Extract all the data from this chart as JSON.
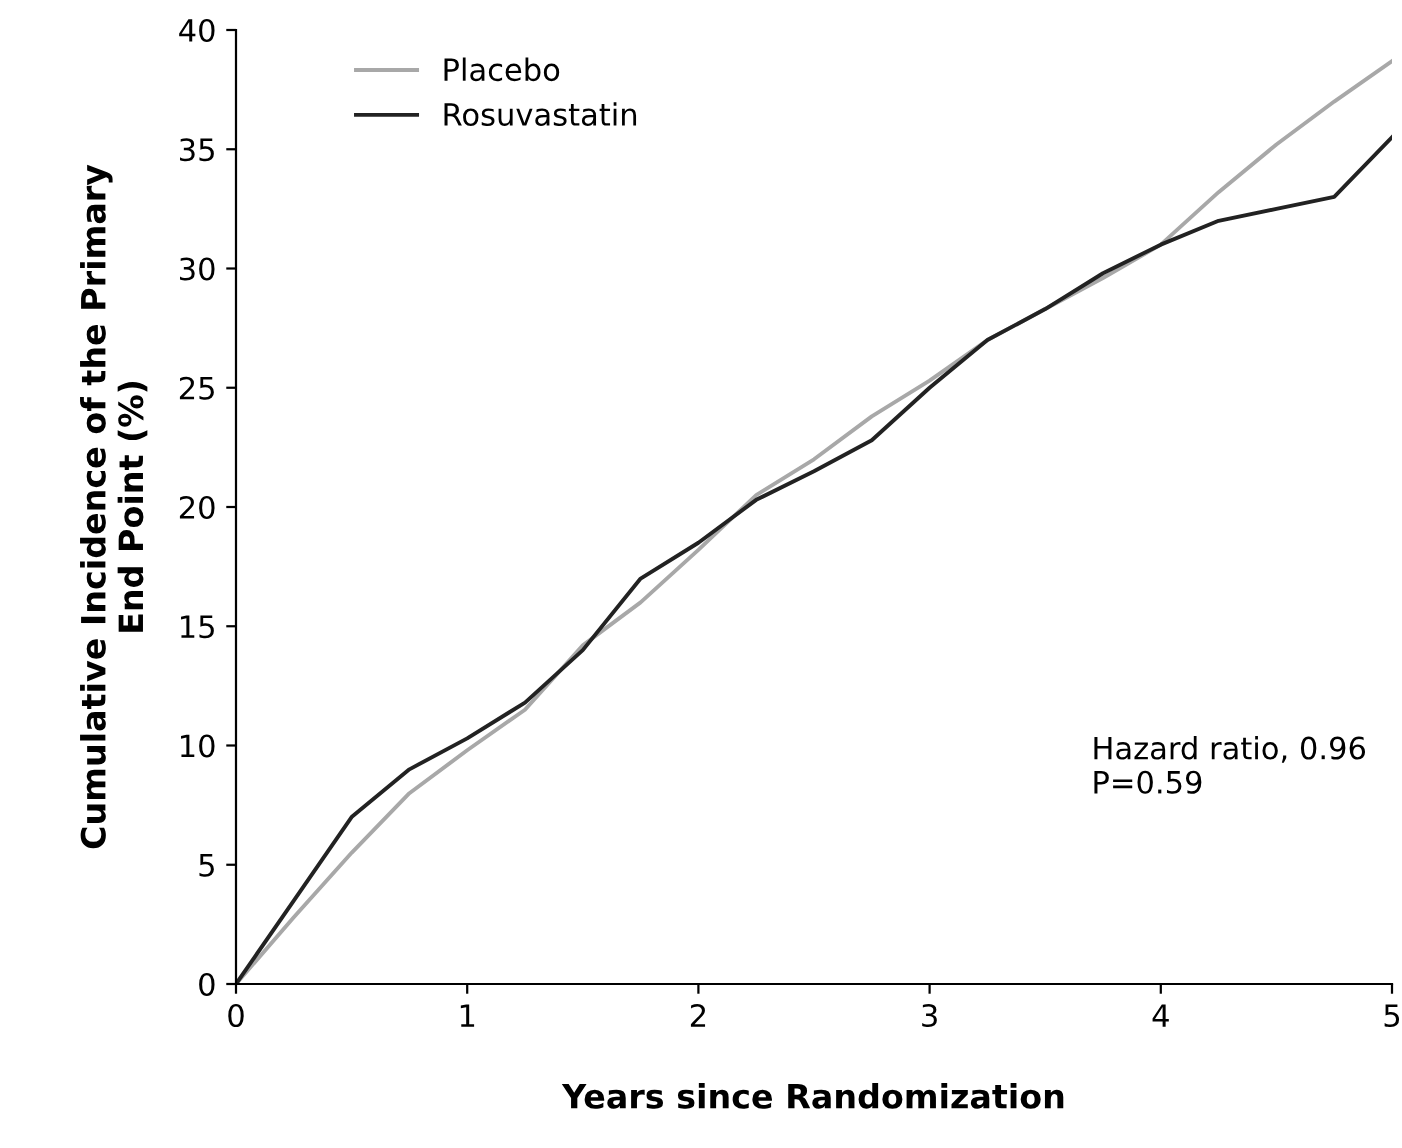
{
  "chart_data": {
    "type": "line",
    "xlabel": "Years since Randomization",
    "ylabel": "Cumulative Incidence of the Primary\nEnd Point (%)",
    "x": [
      0,
      0.25,
      0.5,
      0.75,
      1,
      1.25,
      1.5,
      1.75,
      2,
      2.25,
      2.5,
      2.75,
      3,
      3.25,
      3.5,
      3.75,
      4,
      4.25,
      4.5,
      4.75,
      5
    ],
    "series": [
      {
        "name": "Placebo",
        "color": "#a8a8a8",
        "values": [
          0,
          2.8,
          5.5,
          8,
          9.8,
          11.5,
          14.2,
          16,
          18.2,
          20.5,
          22,
          23.8,
          25.3,
          27,
          28.3,
          29.6,
          31,
          33.2,
          35.2,
          37,
          38.7
        ]
      },
      {
        "name": "Rosuvastatin",
        "color": "#222222",
        "values": [
          0,
          3.5,
          7,
          9,
          10.3,
          11.8,
          14,
          17,
          18.5,
          20.3,
          21.5,
          22.8,
          25,
          27,
          28.3,
          29.8,
          31,
          32,
          32.5,
          33,
          35.5
        ]
      }
    ],
    "xlim": [
      0,
      5
    ],
    "xticks": [
      0,
      1,
      2,
      3,
      4,
      5
    ],
    "ylim": [
      0,
      40
    ],
    "yticks": [
      0,
      5,
      10,
      15,
      20,
      25,
      30,
      35,
      40
    ],
    "annotations": [
      "Hazard ratio, 0.96\nP=0.59"
    ],
    "legend": "top left",
    "grid": false,
    "marker": "none",
    "line_style": "solid"
  }
}
